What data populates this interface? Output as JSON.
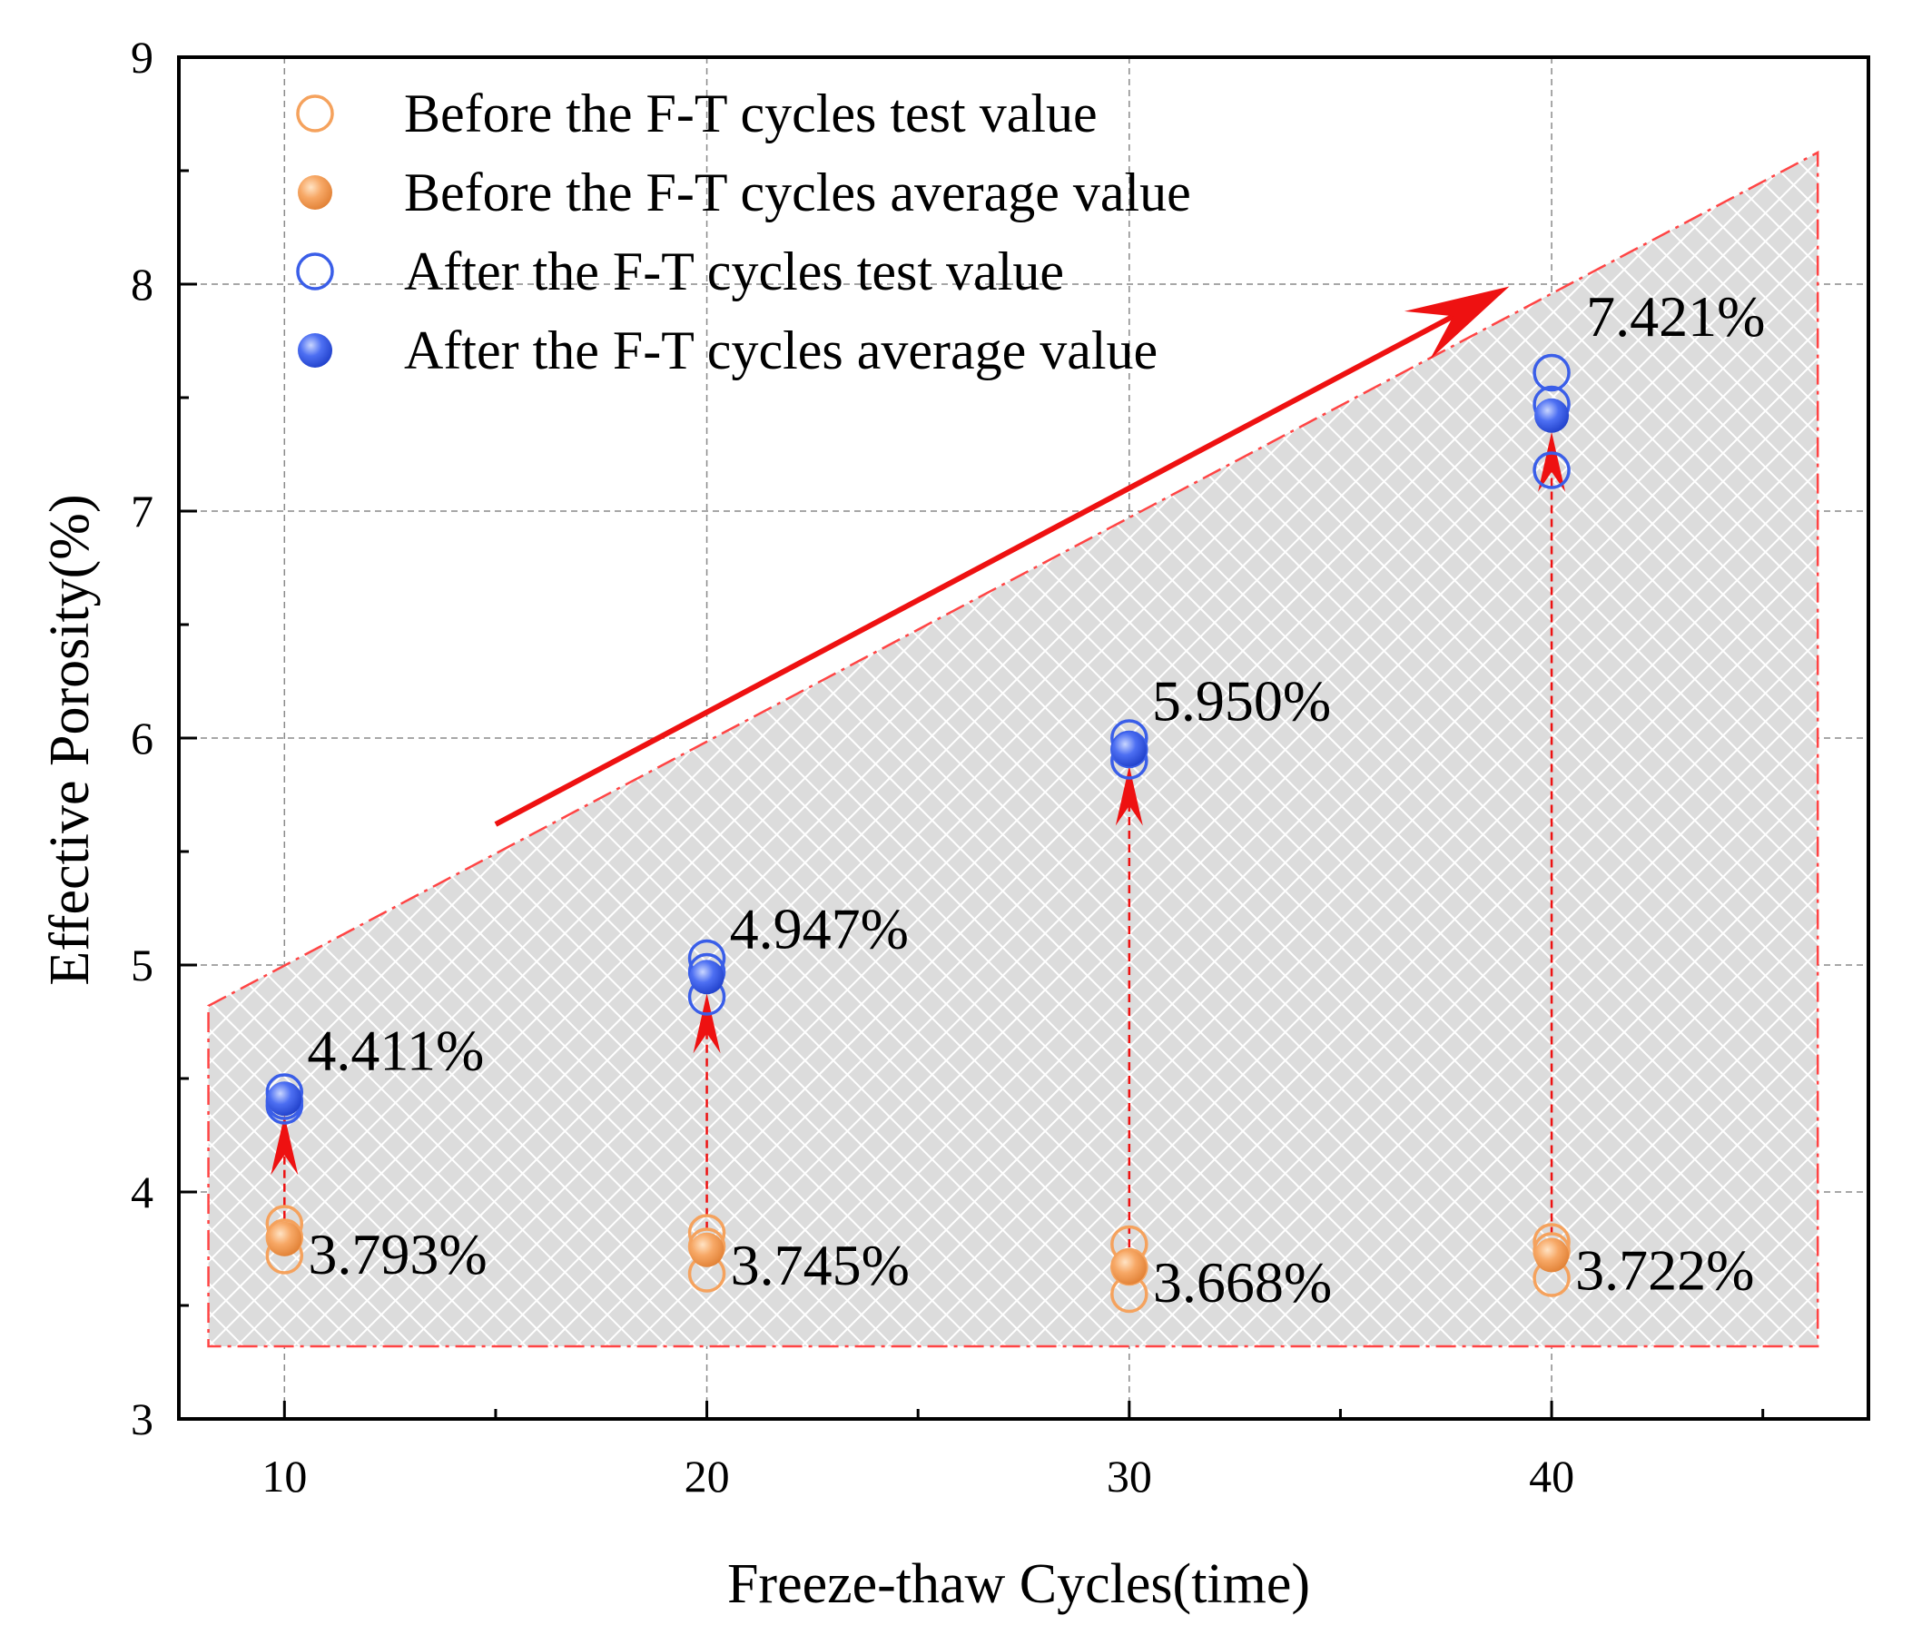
{
  "chart_data": {
    "type": "scatter",
    "title": "",
    "xlabel": "Freeze-thaw Cycles(time)",
    "ylabel": "Effective Porosity(%)",
    "xlim": [
      7.5,
      47.5
    ],
    "ylim": [
      3,
      9
    ],
    "xticks": [
      10,
      20,
      30,
      40
    ],
    "xtick_labels": [
      "10",
      "20",
      "30",
      "40"
    ],
    "yticks": [
      3,
      4,
      5,
      6,
      7,
      8,
      9
    ],
    "ytick_labels": [
      "3",
      "4",
      "5",
      "6",
      "7",
      "8",
      "9"
    ],
    "x_minor_ticks": [
      15,
      25,
      35,
      45
    ],
    "y_minor_ticks": [
      3.5,
      4.5,
      5.5,
      6.5,
      7.5,
      8.5
    ],
    "grid": true,
    "legend_position": "top-left",
    "x": [
      10,
      20,
      30,
      40
    ],
    "series": [
      {
        "name": "Before the F-T cycles test value",
        "marker": "hollow-circle",
        "color": "#f5a25d",
        "points": [
          [
            10,
            3.86
          ],
          [
            10,
            3.8
          ],
          [
            10,
            3.72
          ],
          [
            20,
            3.82
          ],
          [
            20,
            3.76
          ],
          [
            20,
            3.64
          ],
          [
            30,
            3.77
          ],
          [
            30,
            3.67
          ],
          [
            30,
            3.55
          ],
          [
            40,
            3.78
          ],
          [
            40,
            3.74
          ],
          [
            40,
            3.62
          ]
        ]
      },
      {
        "name": "Before the F-T cycles average value",
        "marker": "filled-circle",
        "color": "#f5a25d",
        "values": [
          3.793,
          3.745,
          3.668,
          3.722
        ]
      },
      {
        "name": "After the F-T cycles test value",
        "marker": "hollow-circle",
        "color": "#3a5ee8",
        "points": [
          [
            10,
            4.44
          ],
          [
            10,
            4.4
          ],
          [
            10,
            4.38
          ],
          [
            20,
            5.03
          ],
          [
            20,
            4.97
          ],
          [
            20,
            4.86
          ],
          [
            30,
            6.0
          ],
          [
            30,
            5.95
          ],
          [
            30,
            5.9
          ],
          [
            40,
            7.61
          ],
          [
            40,
            7.47
          ],
          [
            40,
            7.18
          ]
        ]
      },
      {
        "name": "After the F-T cycles average value",
        "marker": "filled-circle",
        "color": "#3a5ee8",
        "values": [
          4.411,
          4.947,
          5.95,
          7.421
        ]
      }
    ],
    "annotations": {
      "after_labels": [
        "4.411%",
        "4.947%",
        "5.950%",
        "7.421%"
      ],
      "before_labels": [
        "3.793%",
        "3.745%",
        "3.668%",
        "3.722%"
      ],
      "shaded_region": {
        "polygon": [
          [
            8.2,
            4.82
          ],
          [
            46.3,
            8.58
          ],
          [
            46.3,
            3.32
          ],
          [
            8.2,
            3.32
          ]
        ],
        "fill": "cross-hatch",
        "border_color": "#ff4444"
      },
      "trend_arrow": {
        "from": [
          15,
          5.62
        ],
        "to": [
          39,
          7.99
        ],
        "color": "#ee1111"
      },
      "rise_arrows_color": "#ee1111"
    }
  }
}
